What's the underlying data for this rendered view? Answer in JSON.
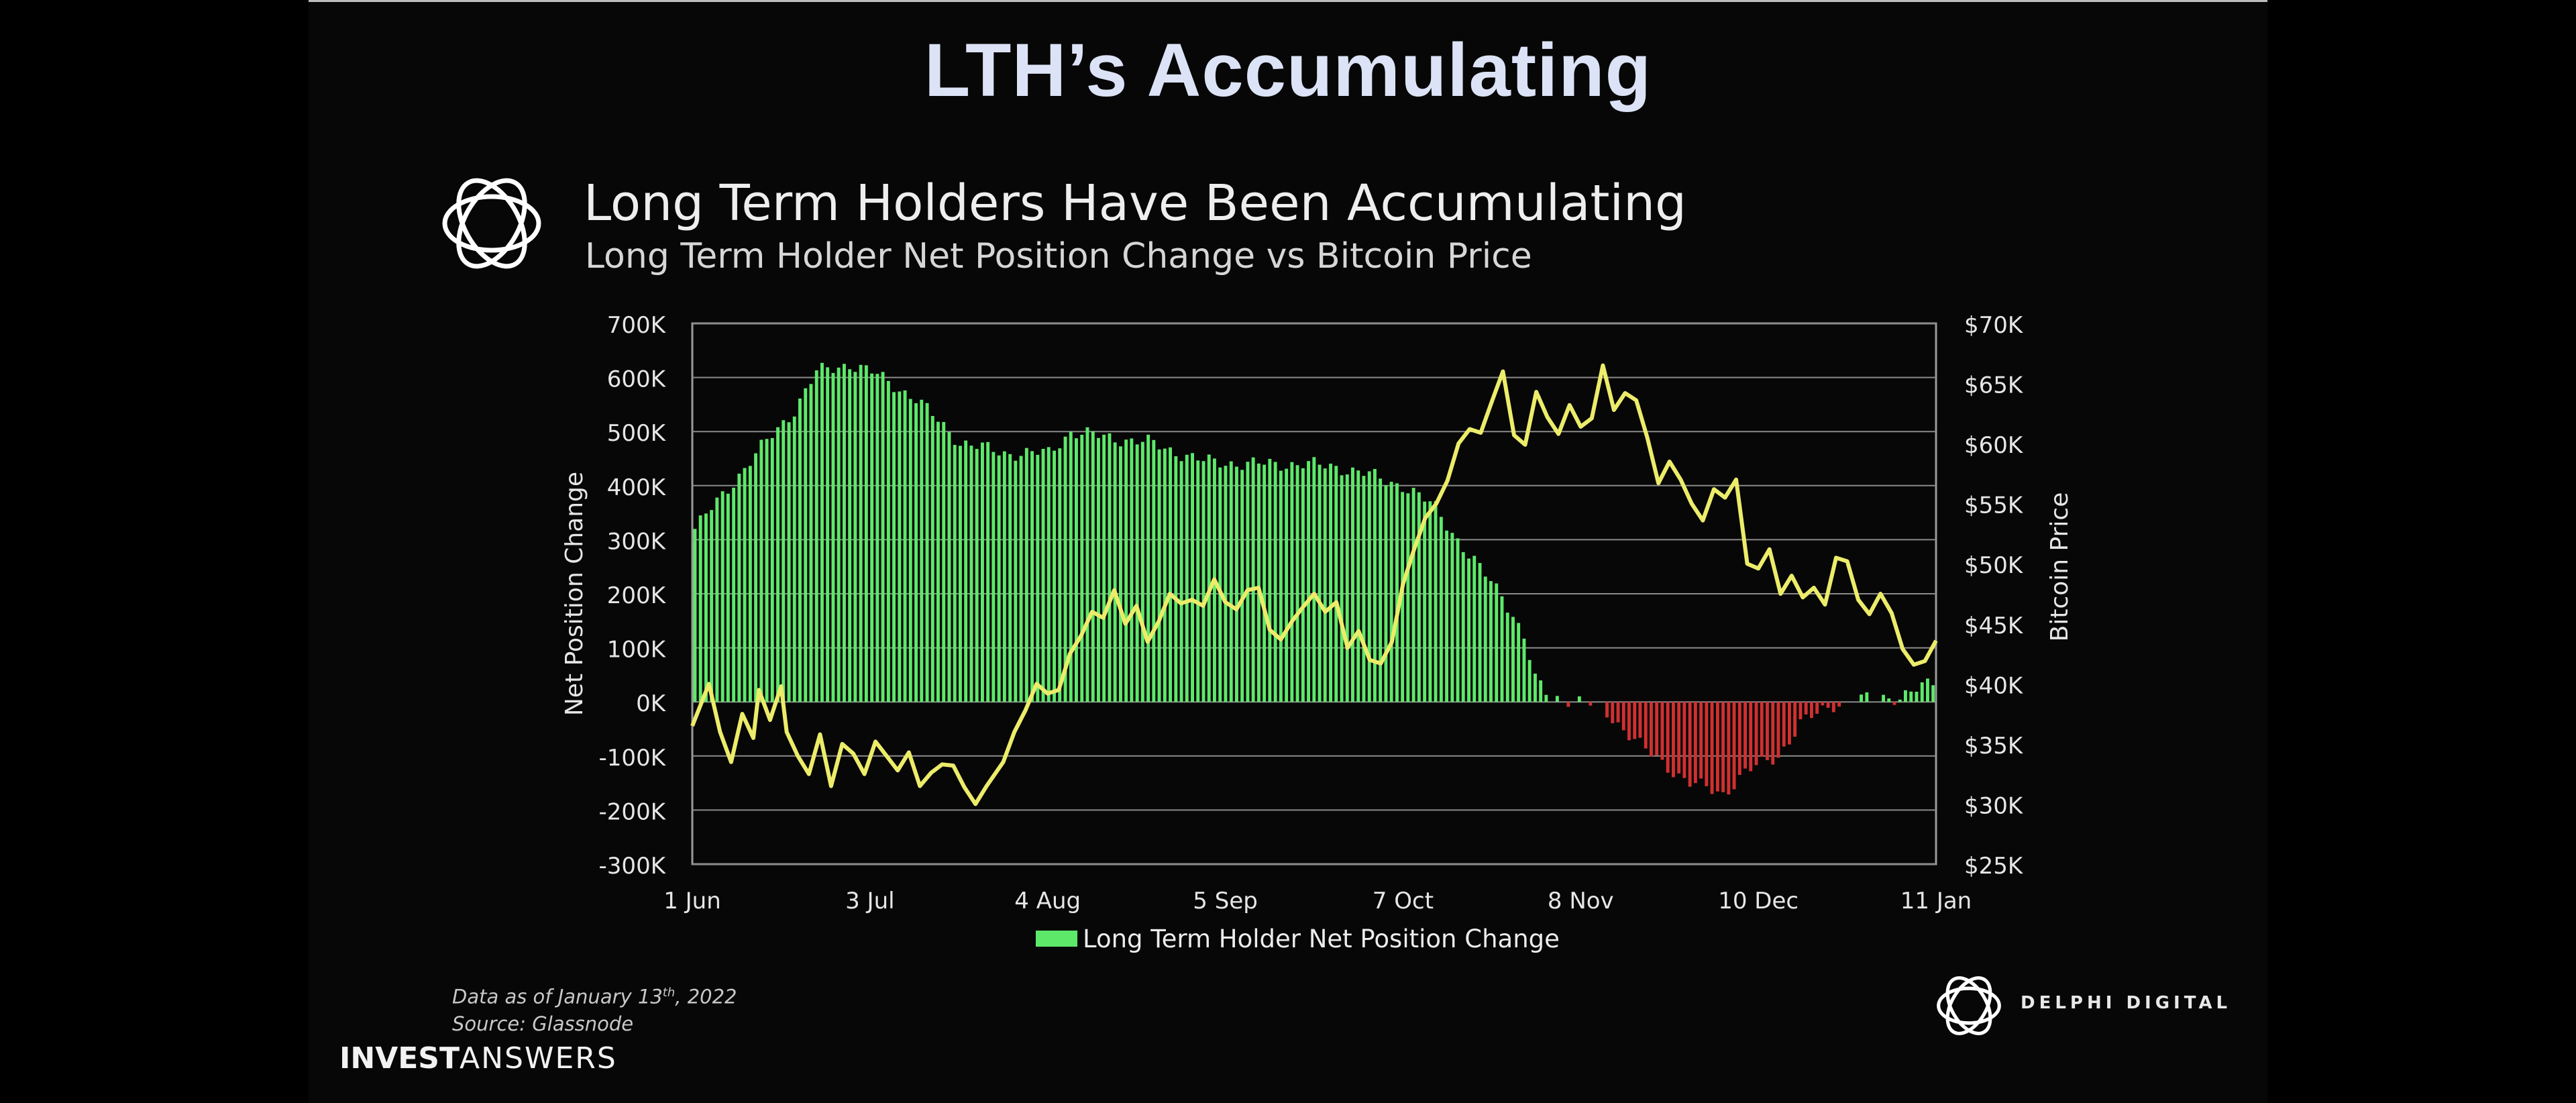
{
  "slide": {
    "title": "LTH’s Accumulating",
    "brand_bold": "INVEST",
    "brand_light": "ANSWERS"
  },
  "chart_header": {
    "title": "Long Term Holders Have Been Accumulating",
    "subtitle": "Long Term Holder Net Position Change vs Bitcoin Price"
  },
  "footnote": {
    "line1_prefix": "Data as of January 13",
    "line1_sup": "th",
    "line1_suffix": ", 2022",
    "line2": "Source: Glassnode"
  },
  "branding": {
    "delphi_name": "DELPHI DIGITAL",
    "logo_icon": "knot-ring-icon"
  },
  "colors": {
    "positive_bar": "#5ee86a",
    "negative_bar": "#d03030",
    "price_line": "#ecec6a",
    "grid": "#8a8a8a",
    "title": "#dce3f6"
  },
  "chart_data": {
    "type": "bar",
    "title": "Long Term Holders Have Been Accumulating",
    "subtitle": "Long Term Holder Net Position Change vs Bitcoin Price",
    "ylabel": "Net Position Change",
    "y2label": "Bitcoin Price",
    "ylim": [
      -300000,
      700000
    ],
    "y2lim": [
      25000,
      70000
    ],
    "yticks": [
      "700K",
      "600K",
      "500K",
      "400K",
      "300K",
      "200K",
      "100K",
      "0K",
      "-100K",
      "-200K",
      "-300K"
    ],
    "y2ticks": [
      "$70K",
      "$65K",
      "$60K",
      "$55K",
      "$50K",
      "$45K",
      "$40K",
      "$35K",
      "$30K",
      "$25K"
    ],
    "xticks": [
      "1 Jun",
      "3 Jul",
      "4 Aug",
      "5 Sep",
      "7 Oct",
      "8 Nov",
      "10 Dec",
      "11 Jan"
    ],
    "xtick_day_index": [
      0,
      32,
      64,
      96,
      128,
      160,
      192,
      224
    ],
    "grid": true,
    "legend_position": "bottom",
    "series": [
      {
        "name": "Long Term Holder Net Position Change",
        "kind": "bar",
        "axis": "left",
        "anchor_day_index": [
          0,
          8,
          12,
          18,
          22,
          28,
          33,
          40,
          48,
          52,
          56,
          64,
          68,
          74,
          82,
          92,
          100,
          110,
          116,
          122,
          128,
          134,
          140,
          146,
          150,
          152,
          155,
          158,
          160,
          164,
          168,
          172,
          176,
          180,
          186,
          190,
          196,
          200,
          206,
          210,
          218,
          224
        ],
        "anchor_values": [
          320000,
          420000,
          470000,
          540000,
          610000,
          625000,
          605000,
          560000,
          480000,
          470000,
          460000,
          460000,
          500000,
          490000,
          480000,
          445000,
          440000,
          440000,
          435000,
          420000,
          400000,
          360000,
          270000,
          200000,
          120000,
          40000,
          8000,
          5000,
          0,
          -10000,
          -50000,
          -90000,
          -120000,
          -150000,
          -170000,
          -130000,
          -100000,
          -40000,
          -5000,
          3000,
          10000,
          35000
        ]
      },
      {
        "name": "Bitcoin Price",
        "kind": "line",
        "axis": "right",
        "day_index": [
          0,
          3,
          5,
          7,
          9,
          11,
          12,
          14,
          16,
          17,
          19,
          21,
          23,
          25,
          27,
          29,
          31,
          33,
          35,
          37,
          39,
          41,
          43,
          45,
          47,
          49,
          51,
          53,
          56,
          58,
          60,
          62,
          64,
          66,
          68,
          70,
          72,
          74,
          76,
          78,
          80,
          82,
          84,
          86,
          88,
          90,
          92,
          94,
          96,
          98,
          100,
          102,
          104,
          106,
          108,
          110,
          112,
          114,
          116,
          118,
          120,
          122,
          124,
          126,
          128,
          130,
          132,
          134,
          136,
          138,
          140,
          142,
          144,
          146,
          148,
          150,
          152,
          154,
          156,
          158,
          160,
          162,
          164,
          166,
          168,
          170,
          172,
          174,
          176,
          178,
          180,
          182,
          184,
          186,
          188,
          190,
          192,
          194,
          196,
          198,
          200,
          202,
          204,
          206,
          208,
          210,
          212,
          214,
          216,
          218,
          220,
          222,
          224
        ],
        "values": [
          36500,
          40000,
          36000,
          33500,
          37500,
          35500,
          39500,
          37000,
          39800,
          36000,
          34000,
          32500,
          35800,
          31500,
          35000,
          34200,
          32500,
          35200,
          34000,
          32800,
          34300,
          31500,
          32600,
          33300,
          33200,
          31400,
          30000,
          31500,
          33500,
          36000,
          37800,
          40000,
          39200,
          39500,
          42500,
          44000,
          46000,
          45500,
          47800,
          45000,
          46500,
          43500,
          45200,
          47500,
          46700,
          47000,
          46500,
          48700,
          46800,
          46200,
          47800,
          48000,
          44500,
          43700,
          45200,
          46400,
          47500,
          46000,
          46800,
          43000,
          44400,
          42000,
          41700,
          43500,
          48300,
          51200,
          53800,
          55000,
          56900,
          60000,
          61200,
          60900,
          63500,
          66000,
          60700,
          59900,
          64300,
          62200,
          60800,
          63200,
          61400,
          62100,
          66500,
          62800,
          64200,
          63600,
          60500,
          56700,
          58500,
          57000,
          55000,
          53600,
          56200,
          55500,
          57000,
          50000,
          49600,
          51200,
          47500,
          49000,
          47200,
          48000,
          46600,
          50500,
          50200,
          47000,
          45800,
          47500,
          45900,
          42900,
          41600,
          41900,
          43600
        ]
      }
    ]
  }
}
